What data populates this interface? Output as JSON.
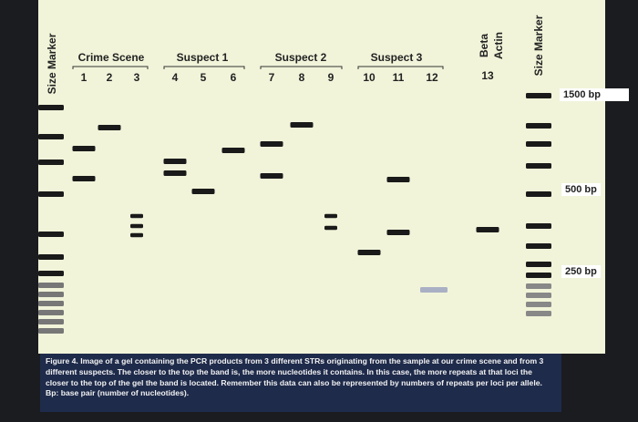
{
  "left_marker_label": "Size Marker",
  "right_marker_label": "Size Marker",
  "groups": [
    {
      "label": "Crime Scene",
      "lanes": [
        "1",
        "2",
        "3"
      ]
    },
    {
      "label": "Suspect 1",
      "lanes": [
        "4",
        "5",
        "6"
      ]
    },
    {
      "label": "Suspect 2",
      "lanes": [
        "7",
        "8",
        "9"
      ]
    },
    {
      "label": "Suspect 3",
      "lanes": [
        "10",
        "11",
        "12"
      ]
    }
  ],
  "beta_actin": {
    "label_lines": [
      "Beta",
      "Actin"
    ],
    "lane": "13"
  },
  "size_labels": [
    "1500 bp",
    "500 bp",
    "250 bp"
  ],
  "caption": "Figure 4. Image of a gel containing the PCR products from 3 different STRs originating from the sample at our crime scene and from 3 different suspects. The closer to the top the band is, the more nucleotides it contains. In this case, the more repeats at that loci the closer to the top of the gel the band is located. Remember this data can also be represented by numbers of repeats per loci per allele. Bp: base pair (number of nucleotides)."
}
